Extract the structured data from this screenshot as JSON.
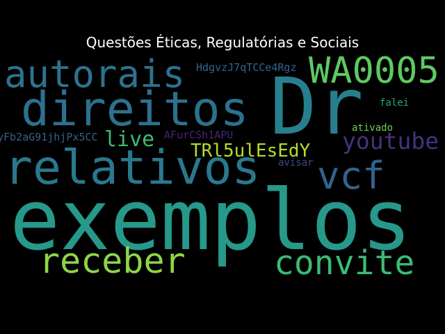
{
  "title": "Questões Éticas, Regulatórias e Sociais",
  "words": {
    "exemplos": {
      "text": "exemplos",
      "color": "#26998a"
    },
    "dr": {
      "text": "Dr",
      "color": "#277f8e"
    },
    "relativos": {
      "text": "relativos",
      "color": "#2a788e"
    },
    "direitos": {
      "text": "direitos",
      "color": "#2c718e"
    },
    "autorais": {
      "text": "autorais",
      "color": "#2c728e"
    },
    "wa0005": {
      "text": "WA0005",
      "color": "#5ec962"
    },
    "receber": {
      "text": "receber",
      "color": "#8ed645"
    },
    "convite": {
      "text": "convite",
      "color": "#3bbb75"
    },
    "vcf": {
      "text": "vcf",
      "color": "#33638d"
    },
    "youtube": {
      "text": "youtube",
      "color": "#46327e"
    },
    "live": {
      "text": "live",
      "color": "#3cbc74"
    },
    "trl": {
      "text": "TRl5ulEsEdY",
      "color": "#b5de2b"
    },
    "hdgv": {
      "text": "HdgvzJ7qTCCe4Rgz",
      "color": "#31668e"
    },
    "yfb": {
      "text": "yFb2aG91jhjPx5CC",
      "color": "#33638d"
    },
    "afur": {
      "text": "AFurCSh1APU",
      "color": "#482475"
    },
    "falei": {
      "text": "falei",
      "color": "#22a884"
    },
    "ativado": {
      "text": "ativado",
      "color": "#73d055"
    },
    "avisar": {
      "text": "avisar",
      "color": "#3e4989"
    }
  }
}
